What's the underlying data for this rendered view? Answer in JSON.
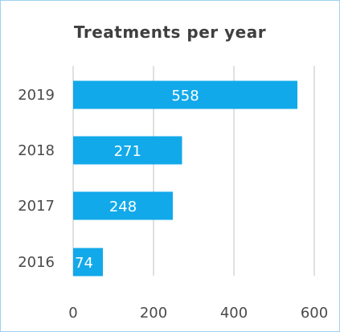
{
  "chart_data": {
    "type": "bar",
    "orientation": "horizontal",
    "title": "Treatments per year",
    "categories": [
      "2019",
      "2018",
      "2017",
      "2016"
    ],
    "values": [
      558,
      271,
      248,
      74
    ],
    "xlim": [
      0,
      600
    ],
    "xticks": [
      0,
      200,
      400,
      600
    ],
    "xlabel": "",
    "ylabel": "",
    "grid": "vertical",
    "legend": "none",
    "bar_color": "#12a9ea",
    "grid_color": "#d6d6d6",
    "value_label_color": "#ffffff"
  }
}
